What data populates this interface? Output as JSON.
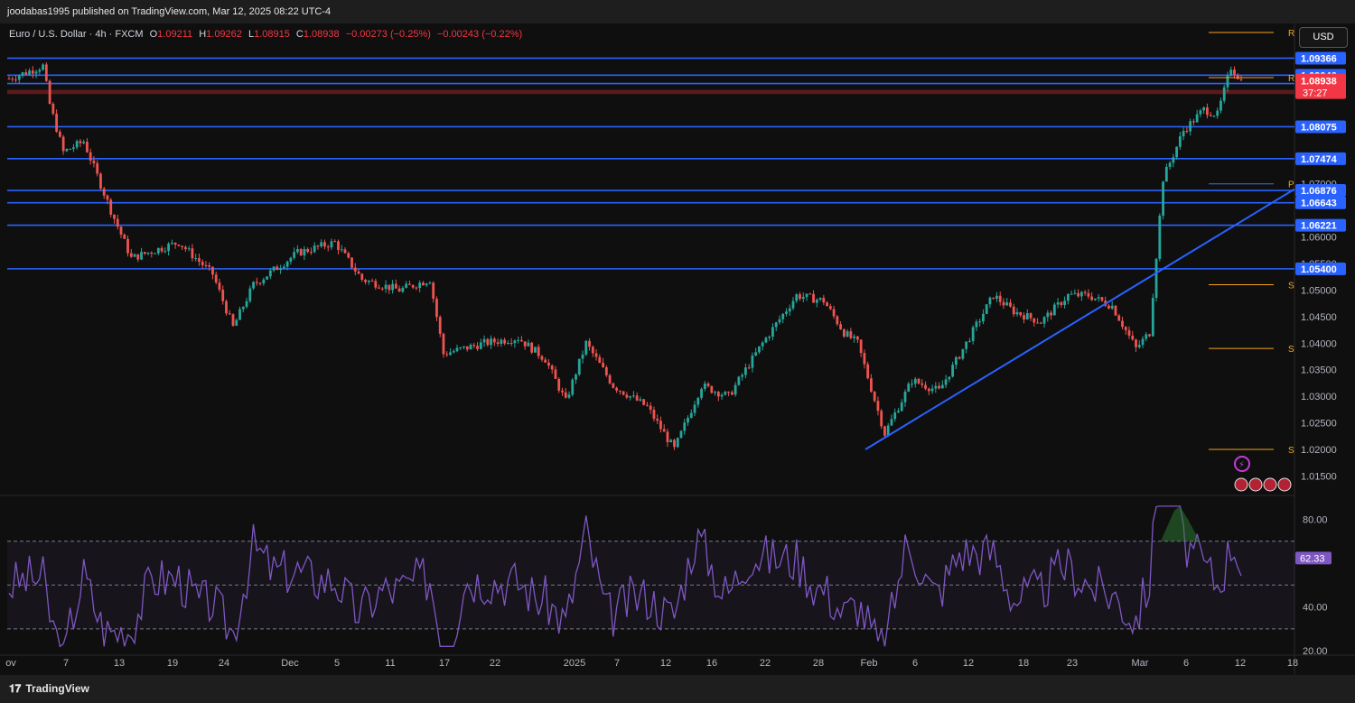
{
  "publisher_line": "joodabas1995 published on TradingView.com, Mar 12, 2025 08:22 UTC-4",
  "legend": {
    "symbol": "Euro / U.S. Dollar · 4h · FXCM",
    "o_label": "O",
    "o": "1.09211",
    "h_label": "H",
    "h": "1.09262",
    "l_label": "L",
    "l": "1.08915",
    "c_label": "C",
    "c": "1.08938",
    "change": "−0.00273 (−0.25%)",
    "change2": "−0.00243 (−0.22%)"
  },
  "currency_button": "USD",
  "footer_brand": "TradingView",
  "colors": {
    "up": "#26a69a",
    "down": "#ef5350",
    "level_line": "#2962ff",
    "price_label_bg": "#2962ff",
    "current_price_bg": "#f23645",
    "rsi_line": "#7e57c2",
    "pivot_line": "#f7a21b"
  },
  "chart_data": {
    "type": "candlestick",
    "price_axis": {
      "ticks": [
        "1.07000",
        "1.06000",
        "1.05500",
        "1.05000",
        "1.04500",
        "1.04000",
        "1.03500",
        "1.03000",
        "1.02500",
        "1.02000",
        "1.01500"
      ],
      "ylim": [
        1.0115,
        1.0985
      ]
    },
    "level_labels": [
      "1.09366",
      "1.09046",
      "1.08889",
      "1.08075",
      "1.07474",
      "1.06876",
      "1.06643",
      "1.06221",
      "1.05400"
    ],
    "current_price": "1.08938",
    "countdown": "37:27",
    "pivot_labels": [
      "R",
      "R",
      "P",
      "S",
      "S",
      "S"
    ],
    "x_ticks": [
      "ov",
      "7",
      "13",
      "19",
      "24",
      "Dec",
      "5",
      "11",
      "17",
      "22",
      "2025",
      "7",
      "12",
      "16",
      "22",
      "28",
      "Feb",
      "6",
      "12",
      "18",
      "23",
      "Mar",
      "6",
      "12",
      "18"
    ],
    "trendline": {
      "from": [
        "Feb 1",
        1.02
      ],
      "to": [
        "Mar 17",
        1.069
      ]
    },
    "rsi": {
      "value": "62.33",
      "ticks": [
        "80.00",
        "40.00",
        "20.00"
      ],
      "ylim": [
        18,
        88
      ],
      "bands": [
        70,
        50,
        30
      ],
      "ohlc_series_note": ""
    }
  }
}
